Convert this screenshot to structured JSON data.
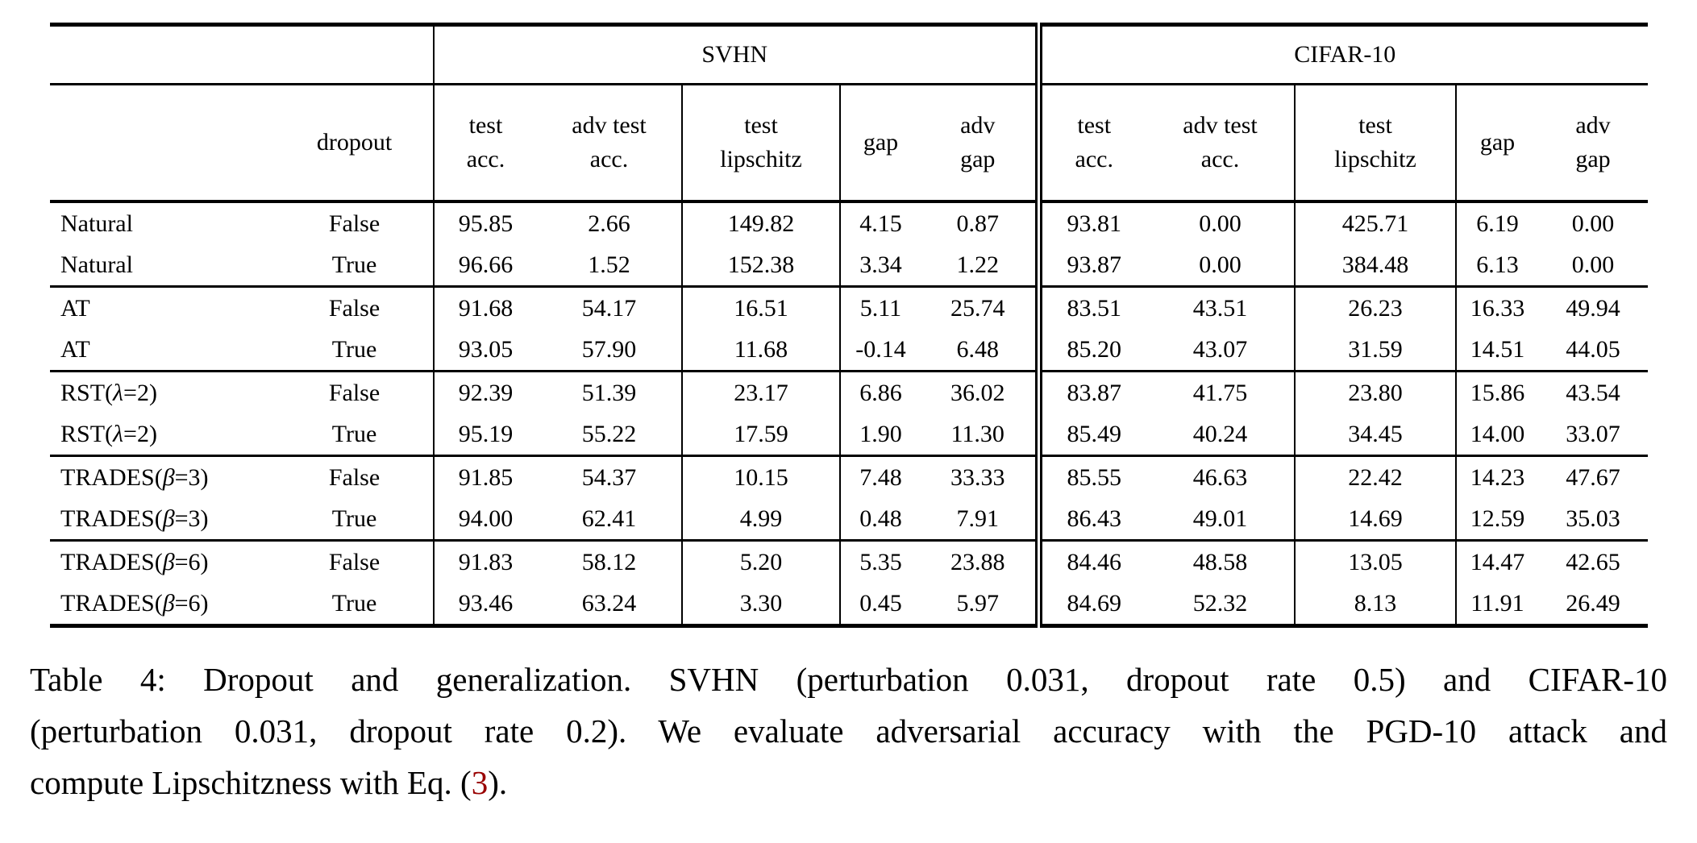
{
  "table": {
    "groups": [
      {
        "label": "SVHN"
      },
      {
        "label": "CIFAR-10"
      }
    ],
    "dropout_label": "dropout",
    "sub_headers": [
      {
        "line1": "test",
        "line2": "acc."
      },
      {
        "line1": "adv test",
        "line2": "acc."
      },
      {
        "line1": "test",
        "line2": "lipschitz"
      },
      {
        "line1": "gap",
        "line2": ""
      },
      {
        "line1": "adv",
        "line2": "gap"
      }
    ],
    "rows": [
      {
        "method_base": "Natural",
        "method_param": "",
        "dropout": "False",
        "svhn": [
          "95.85",
          "2.66",
          "149.82",
          "4.15",
          "0.87"
        ],
        "cifar": [
          "93.81",
          "0.00",
          "425.71",
          "6.19",
          "0.00"
        ]
      },
      {
        "method_base": "Natural",
        "method_param": "",
        "dropout": "True",
        "svhn": [
          "96.66",
          "1.52",
          "152.38",
          "3.34",
          "1.22"
        ],
        "cifar": [
          "93.87",
          "0.00",
          "384.48",
          "6.13",
          "0.00"
        ]
      },
      {
        "method_base": "AT",
        "method_param": "",
        "dropout": "False",
        "svhn": [
          "91.68",
          "54.17",
          "16.51",
          "5.11",
          "25.74"
        ],
        "cifar": [
          "83.51",
          "43.51",
          "26.23",
          "16.33",
          "49.94"
        ]
      },
      {
        "method_base": "AT",
        "method_param": "",
        "dropout": "True",
        "svhn": [
          "93.05",
          "57.90",
          "11.68",
          "-0.14",
          "6.48"
        ],
        "cifar": [
          "85.20",
          "43.07",
          "31.59",
          "14.51",
          "44.05"
        ]
      },
      {
        "method_base": "RST",
        "method_param": "λ=2",
        "dropout": "False",
        "svhn": [
          "92.39",
          "51.39",
          "23.17",
          "6.86",
          "36.02"
        ],
        "cifar": [
          "83.87",
          "41.75",
          "23.80",
          "15.86",
          "43.54"
        ]
      },
      {
        "method_base": "RST",
        "method_param": "λ=2",
        "dropout": "True",
        "svhn": [
          "95.19",
          "55.22",
          "17.59",
          "1.90",
          "11.30"
        ],
        "cifar": [
          "85.49",
          "40.24",
          "34.45",
          "14.00",
          "33.07"
        ]
      },
      {
        "method_base": "TRADES",
        "method_param": "β=3",
        "dropout": "False",
        "svhn": [
          "91.85",
          "54.37",
          "10.15",
          "7.48",
          "33.33"
        ],
        "cifar": [
          "85.55",
          "46.63",
          "22.42",
          "14.23",
          "47.67"
        ]
      },
      {
        "method_base": "TRADES",
        "method_param": "β=3",
        "dropout": "True",
        "svhn": [
          "94.00",
          "62.41",
          "4.99",
          "0.48",
          "7.91"
        ],
        "cifar": [
          "86.43",
          "49.01",
          "14.69",
          "12.59",
          "35.03"
        ]
      },
      {
        "method_base": "TRADES",
        "method_param": "β=6",
        "dropout": "False",
        "svhn": [
          "91.83",
          "58.12",
          "5.20",
          "5.35",
          "23.88"
        ],
        "cifar": [
          "84.46",
          "48.58",
          "13.05",
          "14.47",
          "42.65"
        ]
      },
      {
        "method_base": "TRADES",
        "method_param": "β=6",
        "dropout": "True",
        "svhn": [
          "93.46",
          "63.24",
          "3.30",
          "0.45",
          "5.97"
        ],
        "cifar": [
          "84.69",
          "52.32",
          "8.13",
          "11.91",
          "26.49"
        ]
      }
    ]
  },
  "caption": {
    "line1": "Table 4: Dropout and generalization. SVHN (perturbation 0.031, dropout rate 0.5) and CIFAR-10",
    "line2": "(perturbation 0.031, dropout rate 0.2). We evaluate adversarial accuracy with the PGD-10 attack and",
    "line3_prefix": "compute Lipschitzness with Eq. (",
    "link_text": "3",
    "line3_suffix": ").",
    "link_color": "#990000"
  }
}
